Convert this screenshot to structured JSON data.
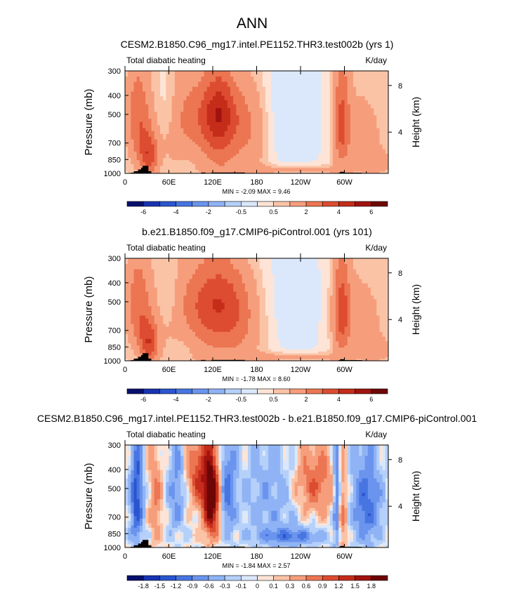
{
  "figure_title": "ANN",
  "chart_data": [
    {
      "type": "heatmap",
      "title": "CESM2.B1850.C96_mg17.intel.PE1152.THR3.test002b (yrs 1)",
      "left_label": "Total diabatic heating",
      "right_label": "K/day",
      "ylabel": "Pressure (mb)",
      "ylabel_right": "Height (km)",
      "x_ticks": [
        "0",
        "60E",
        "120E",
        "180",
        "120W",
        "60W"
      ],
      "x_tick_values": [
        0,
        60,
        120,
        180,
        240,
        300
      ],
      "xlim": [
        0,
        360
      ],
      "y_ticks": [
        "300",
        "400",
        "500",
        "700",
        "850",
        "1000"
      ],
      "y_tick_values": [
        300,
        400,
        500,
        700,
        850,
        1000
      ],
      "ylim": [
        1000,
        300
      ],
      "height_ticks": [
        "8",
        "4"
      ],
      "height_tick_values": [
        8,
        4
      ],
      "stats": "MIN = -2.09  MAX =  9.46",
      "min": -2.09,
      "max": 9.46,
      "colorbar_levels": [
        "-6",
        "",
        "-4",
        "",
        "-2",
        "",
        "-0.5",
        "",
        "0.5",
        "",
        "2",
        "",
        "4",
        "",
        "6"
      ],
      "colorbar_values": [
        -6,
        -5,
        -4,
        -3,
        -2,
        -1,
        -0.5,
        0,
        0.5,
        1,
        2,
        3,
        4,
        5,
        6
      ]
    },
    {
      "type": "heatmap",
      "title": "b.e21.B1850.f09_g17.CMIP6-piControl.001 (yrs 101)",
      "left_label": "Total diabatic heating",
      "right_label": "K/day",
      "ylabel": "Pressure (mb)",
      "ylabel_right": "Height (km)",
      "x_ticks": [
        "0",
        "60E",
        "120E",
        "180",
        "120W",
        "60W"
      ],
      "x_tick_values": [
        0,
        60,
        120,
        180,
        240,
        300
      ],
      "xlim": [
        0,
        360
      ],
      "y_ticks": [
        "300",
        "400",
        "500",
        "700",
        "850",
        "1000"
      ],
      "y_tick_values": [
        300,
        400,
        500,
        700,
        850,
        1000
      ],
      "ylim": [
        1000,
        300
      ],
      "height_ticks": [
        "8",
        "4"
      ],
      "height_tick_values": [
        8,
        4
      ],
      "stats": "MIN = -1.78  MAX =  8.60",
      "min": -1.78,
      "max": 8.6,
      "colorbar_levels": [
        "-6",
        "",
        "-4",
        "",
        "-2",
        "",
        "-0.5",
        "",
        "0.5",
        "",
        "2",
        "",
        "4",
        "",
        "6"
      ],
      "colorbar_values": [
        -6,
        -5,
        -4,
        -3,
        -2,
        -1,
        -0.5,
        0,
        0.5,
        1,
        2,
        3,
        4,
        5,
        6
      ]
    },
    {
      "type": "heatmap",
      "title": "CESM2.B1850.C96_mg17.intel.PE1152.THR3.test002b - b.e21.B1850.f09_g17.CMIP6-piControl.001",
      "left_label": "Total diabatic heating",
      "right_label": "K/day",
      "ylabel": "Pressure (mb)",
      "ylabel_right": "Height (km)",
      "x_ticks": [
        "0",
        "60E",
        "120E",
        "180",
        "120W",
        "60W"
      ],
      "x_tick_values": [
        0,
        60,
        120,
        180,
        240,
        300
      ],
      "xlim": [
        0,
        360
      ],
      "y_ticks": [
        "300",
        "400",
        "500",
        "700",
        "850",
        "1000"
      ],
      "y_tick_values": [
        300,
        400,
        500,
        700,
        850,
        1000
      ],
      "ylim": [
        1000,
        300
      ],
      "height_ticks": [
        "8",
        "4"
      ],
      "height_tick_values": [
        8,
        4
      ],
      "stats": "MIN = -1.84  MAX =  2.57",
      "min": -1.84,
      "max": 2.57,
      "colorbar_levels": [
        "-1.8",
        "-1.5",
        "-1.2",
        "-0.9",
        "-0.6",
        "-0.3",
        "-0.1",
        "0",
        "0.1",
        "0.3",
        "0.6",
        "0.9",
        "1.2",
        "1.5",
        "1.8"
      ],
      "colorbar_values": [
        -1.8,
        -1.5,
        -1.2,
        -0.9,
        -0.6,
        -0.3,
        -0.1,
        0,
        0.1,
        0.3,
        0.6,
        0.9,
        1.2,
        1.5,
        1.8
      ]
    }
  ],
  "colors": {
    "palette": [
      "#08106e",
      "#1833b0",
      "#2b55cf",
      "#4775e1",
      "#6a94ed",
      "#8fb3f5",
      "#b5d0f9",
      "#dbe8fb",
      "#fde4d6",
      "#fbc3a6",
      "#f69e7c",
      "#ec7552",
      "#dd4c30",
      "#c52c1a",
      "#a0130f",
      "#6e0606"
    ],
    "terrain": "#000000"
  }
}
